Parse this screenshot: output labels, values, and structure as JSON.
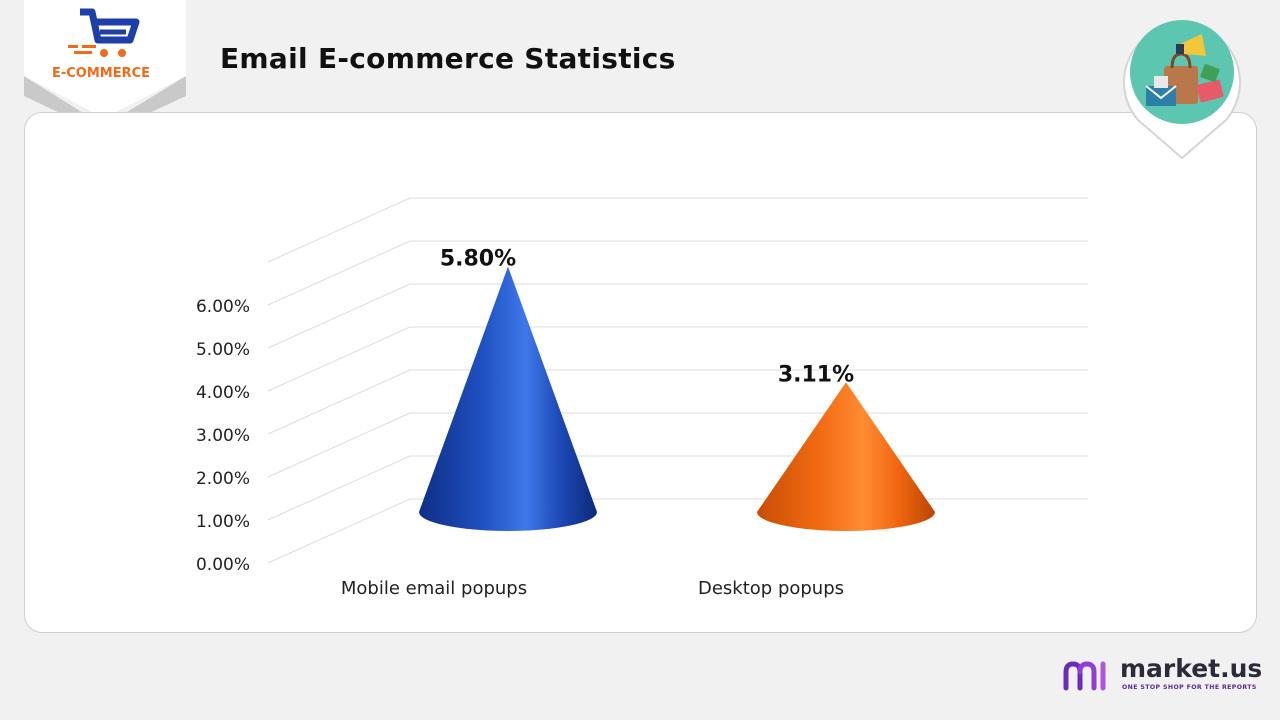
{
  "header": {
    "title": "Email E-commerce Statistics",
    "logo_text": "E-COMMERCE"
  },
  "brand": {
    "name": "market.us",
    "tagline": "ONE STOP SHOP FOR THE REPORTS"
  },
  "colors": {
    "mobile": "#1f4fc0",
    "desktop": "#f26a12",
    "logo_blue": "#1f3fa8",
    "logo_orange": "#f06a1a",
    "badge_teal": "#5cc6b0"
  },
  "chart_data": {
    "type": "bar",
    "shape": "cone",
    "title": "",
    "categories": [
      "Mobile email popups",
      "Desktop popups"
    ],
    "values": [
      5.8,
      3.11
    ],
    "data_labels": [
      "5.80%",
      "3.11%"
    ],
    "ylim": [
      0,
      7
    ],
    "yticks": [
      0,
      1,
      2,
      3,
      4,
      5,
      6
    ],
    "ytick_labels": [
      "0.00%",
      "1.00%",
      "2.00%",
      "3.00%",
      "4.00%",
      "5.00%",
      "6.00%"
    ],
    "xlabel": "",
    "ylabel": "",
    "grid": true,
    "legend": false
  }
}
